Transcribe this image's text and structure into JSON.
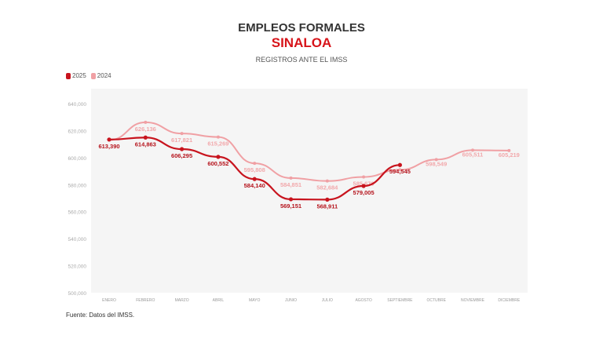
{
  "chart_data": {
    "type": "line",
    "title": "EMPLEOS FORMALES",
    "subtitle": "SINALOA",
    "caption": "REGISTROS ANTE EL IMSS",
    "source": "Fuente: Datos del IMSS.",
    "categories": [
      "ENERO",
      "FEBRERO",
      "MARZO",
      "ABRIL",
      "MAYO",
      "JUNIO",
      "JULIO",
      "AGOSTO",
      "SEPTIEMBRE",
      "OCTUBRE",
      "NOVIEMBRE",
      "DICIEMBRE"
    ],
    "ylim": [
      500000,
      640000
    ],
    "yticks": [
      "500,000",
      "520,000",
      "540,000",
      "560,000",
      "580,000",
      "600,000",
      "620,000",
      "640,000"
    ],
    "ytick_values": [
      500000,
      520000,
      540000,
      560000,
      580000,
      600000,
      620000,
      640000
    ],
    "legend_position": "top-left",
    "series": [
      {
        "name": "2025",
        "color": "#c8141e",
        "values": [
          613390,
          614863,
          606295,
          600552,
          584140,
          569151,
          568911,
          579005,
          594545,
          null,
          null,
          null
        ],
        "labels": [
          "613,390",
          "614,863",
          "606,295",
          "600,552",
          "584,140",
          "569,151",
          "568,911",
          "579,005",
          "594,545",
          null,
          null,
          null
        ]
      },
      {
        "name": "2024",
        "color": "#f0a0a4",
        "values": [
          613000,
          626136,
          617821,
          615269,
          595808,
          584851,
          582684,
          585679,
          591000,
          598549,
          605511,
          605219
        ],
        "labels": [
          null,
          "626,136",
          "617,821",
          "615,269",
          "595,808",
          "584,851",
          "582,684",
          "585,679",
          null,
          "598,549",
          "605,511",
          "605,219"
        ]
      }
    ]
  }
}
